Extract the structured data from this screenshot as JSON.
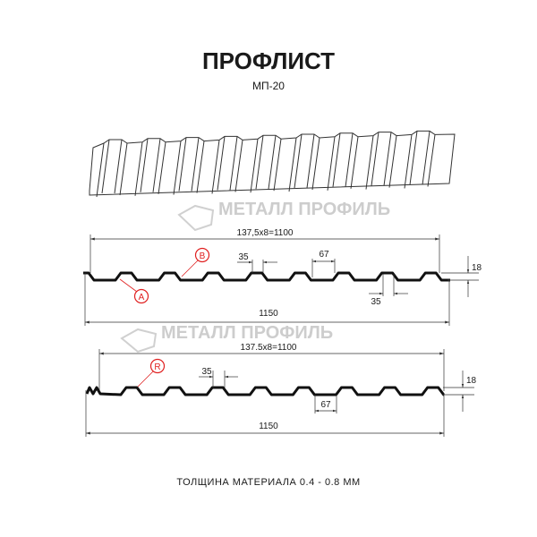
{
  "title": "ПРОФЛИСТ",
  "subtitle": "МП-20",
  "watermark": "МЕТАЛЛ ПРОФИЛЬ",
  "profile_top": {
    "pitch_label": "137,5x8=1100",
    "width_label": "1150",
    "crest_label": "35",
    "trough_label": "67",
    "bottom_label": "35",
    "height_label": "18",
    "marker_a": "A",
    "marker_b": "B"
  },
  "profile_bottom": {
    "pitch_label": "137.5x8=1100",
    "width_label": "1150",
    "crest_label": "35",
    "trough_label": "67",
    "height_label": "18",
    "marker_r": "R"
  },
  "thickness_note": "ТОЛЩИНА МАТЕРИАЛА 0.4 - 0.8 ММ",
  "colors": {
    "line": "#1a1a1a",
    "marker": "#e02020",
    "watermark": "#c8c8c8"
  }
}
